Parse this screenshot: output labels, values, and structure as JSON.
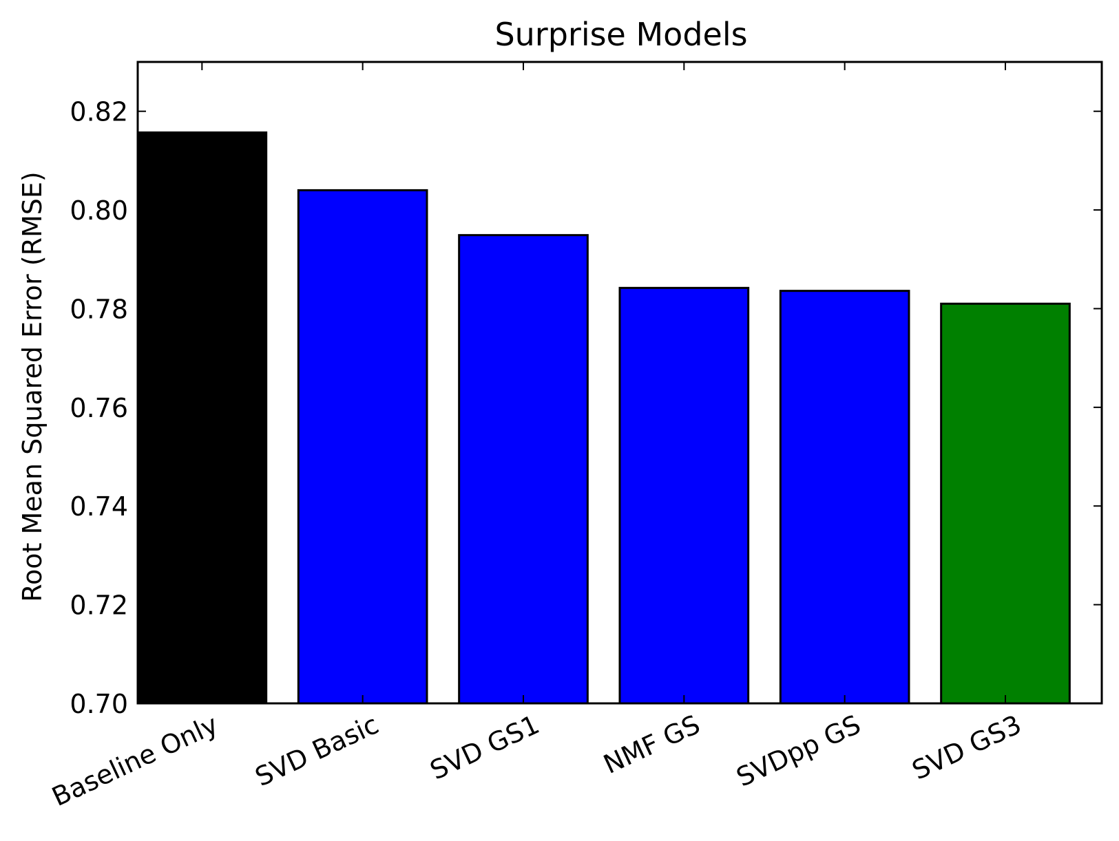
{
  "chart_data": {
    "type": "bar",
    "title": "Surprise Models",
    "xlabel": "",
    "ylabel": "Root Mean Squared Error (RMSE)",
    "categories": [
      "Baseline Only",
      "SVD Basic",
      "SVD GS1",
      "NMF GS",
      "SVDpp GS",
      "SVD GS3"
    ],
    "values": [
      0.8157,
      0.804,
      0.7949,
      0.7842,
      0.7836,
      0.781
    ],
    "colors": [
      "#000000",
      "#0000ff",
      "#0000ff",
      "#0000ff",
      "#0000ff",
      "#008000"
    ],
    "ylim": [
      0.7,
      0.83
    ],
    "yticks": [
      "0.70",
      "0.72",
      "0.74",
      "0.76",
      "0.78",
      "0.80",
      "0.82"
    ],
    "grid": false,
    "legend": "none"
  }
}
